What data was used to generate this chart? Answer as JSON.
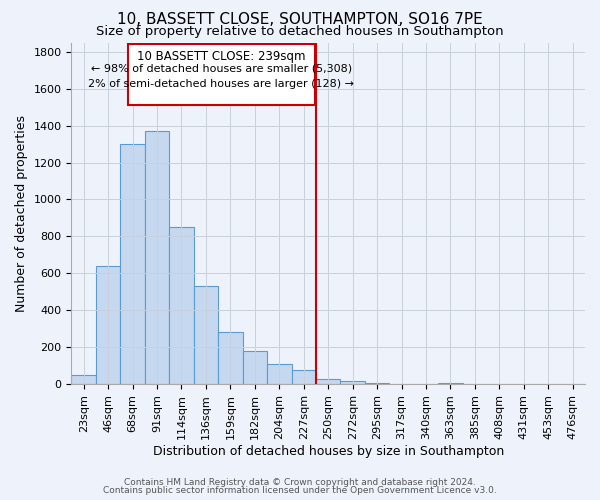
{
  "title": "10, BASSETT CLOSE, SOUTHAMPTON, SO16 7PE",
  "subtitle": "Size of property relative to detached houses in Southampton",
  "xlabel": "Distribution of detached houses by size in Southampton",
  "ylabel": "Number of detached properties",
  "footer_line1": "Contains HM Land Registry data © Crown copyright and database right 2024.",
  "footer_line2": "Contains public sector information licensed under the Open Government Licence v3.0.",
  "annotation_title": "10 BASSETT CLOSE: 239sqm",
  "annotation_line1": "← 98% of detached houses are smaller (5,308)",
  "annotation_line2": "2% of semi-detached houses are larger (128) →",
  "categories": [
    "23sqm",
    "46sqm",
    "68sqm",
    "91sqm",
    "114sqm",
    "136sqm",
    "159sqm",
    "182sqm",
    "204sqm",
    "227sqm",
    "250sqm",
    "272sqm",
    "295sqm",
    "317sqm",
    "340sqm",
    "363sqm",
    "385sqm",
    "408sqm",
    "431sqm",
    "453sqm",
    "476sqm"
  ],
  "values": [
    50,
    640,
    1300,
    1370,
    850,
    530,
    280,
    180,
    110,
    75,
    30,
    15,
    5,
    0,
    0,
    5,
    0,
    0,
    0,
    0,
    0
  ],
  "bar_color": "#c5d8f0",
  "bar_edge_color": "#5b9bd5",
  "property_line_color": "#cc0000",
  "annotation_box_color": "#ffffff",
  "annotation_box_edge": "#cc0000",
  "background_color": "#eef3fb",
  "ylim": [
    0,
    1850
  ],
  "yticks": [
    0,
    200,
    400,
    600,
    800,
    1000,
    1200,
    1400,
    1600,
    1800
  ],
  "grid_color": "#c8d0dc",
  "title_fontsize": 11,
  "subtitle_fontsize": 9.5,
  "axis_label_fontsize": 9,
  "tick_fontsize": 8,
  "footer_fontsize": 6.5,
  "prop_line_index": 9.52
}
